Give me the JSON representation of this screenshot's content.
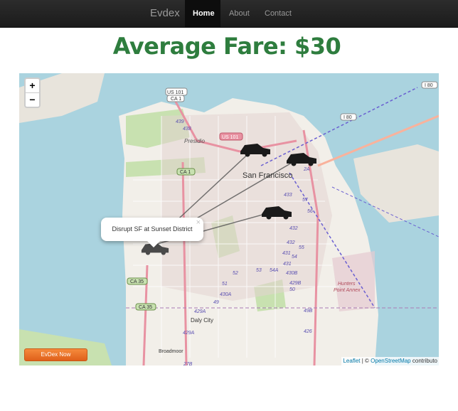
{
  "navbar": {
    "brand": "Evdex",
    "links": [
      {
        "label": "Home",
        "active": true
      },
      {
        "label": "About",
        "active": false
      },
      {
        "label": "Contact",
        "active": false
      }
    ]
  },
  "page_title": "Average Fare: $30",
  "map": {
    "zoom_in": "+",
    "zoom_out": "−",
    "popup_text": "Disrupt SF at Sunset District",
    "popup_close": "×",
    "attribution": {
      "leaflet": "Leaflet",
      "separator": " | © ",
      "osm": "OpenStreetMap",
      "contributors": " contributo"
    },
    "labels": {
      "city": "San Francisco",
      "presidio": "Presidio",
      "daly_city": "Daly City",
      "broadmoor": "Broadmoor",
      "hunters_point_1": "Hunters",
      "hunters_point_2": "Point Annex"
    },
    "shields": {
      "us101_ca1_a": "US 101",
      "us101_ca1_b": "CA 1",
      "us101": "US 101",
      "ca1": "CA 1",
      "ca35_a": "CA 35",
      "ca35_b": "CA 35",
      "i80_a": "I 80",
      "i80_b": "I 80"
    },
    "route_numbers": [
      "439",
      "438",
      "2A",
      "433",
      "57",
      "432",
      "56",
      "432",
      "55",
      "431",
      "54",
      "431",
      "430B",
      "54A",
      "53",
      "52",
      "51",
      "430A",
      "429B",
      "50",
      "49",
      "429A",
      "49B",
      "429A",
      "426",
      "27B"
    ]
  },
  "cta_button": "EvDex Now",
  "colors": {
    "title_green": "#2e7d3e",
    "water": "#aad3df",
    "land": "#f2efe9",
    "park": "#c8e1b0",
    "route": "#6a5fd1",
    "car": "#1a1a1a",
    "cta_orange": "#f07a2a"
  },
  "icons": [
    "car-marker-icon",
    "close-icon"
  ]
}
